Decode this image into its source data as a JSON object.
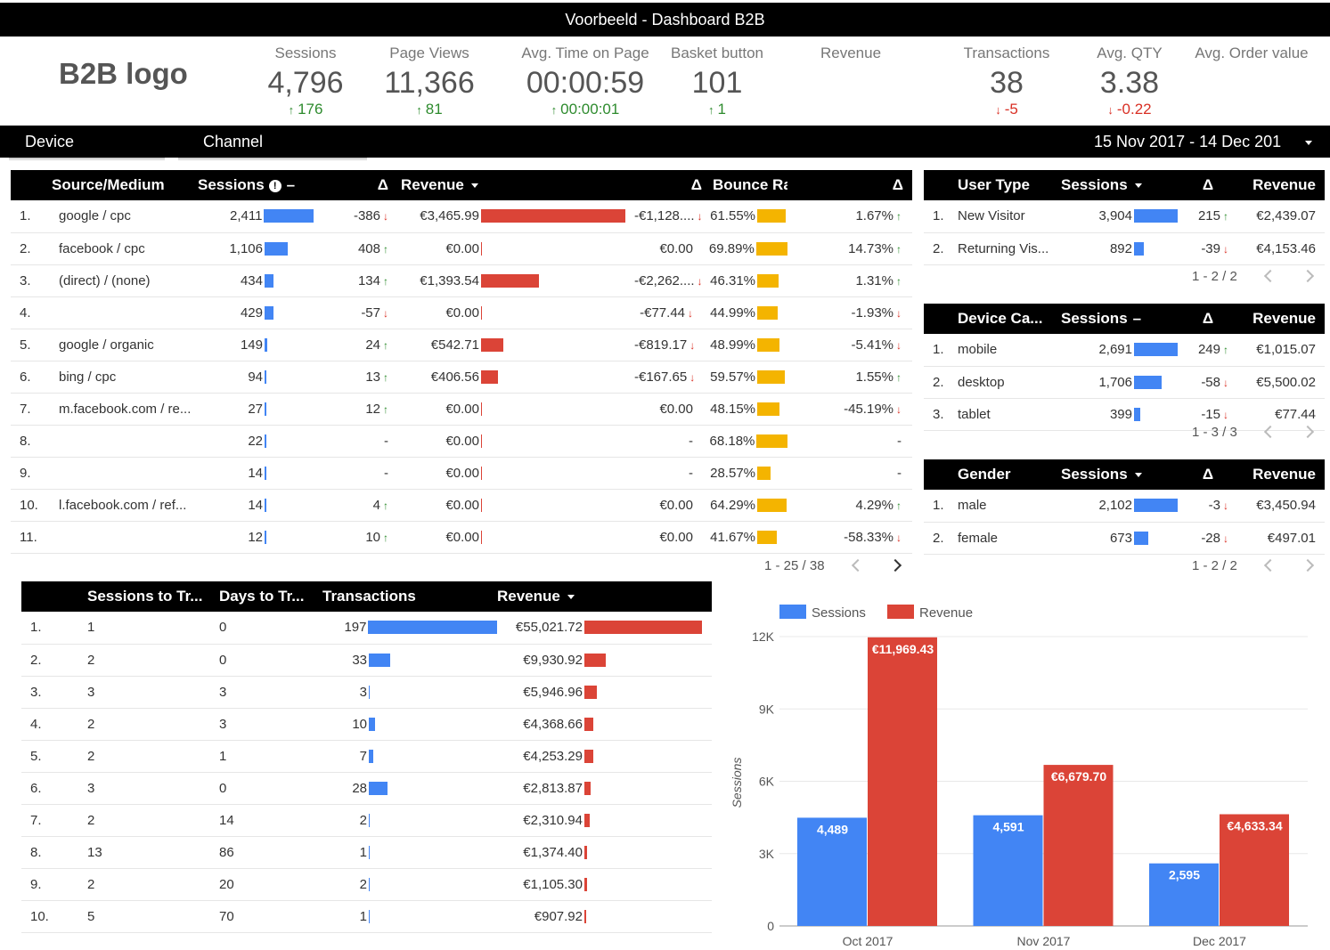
{
  "title": "Voorbeeld - Dashboard B2B",
  "logo": "B2B logo",
  "kpis": [
    {
      "label": "Sessions",
      "value": "4,796",
      "delta": "176",
      "dir": "up"
    },
    {
      "label": "Page Views",
      "value": "11,366",
      "delta": "81",
      "dir": "up"
    },
    {
      "label": "Avg. Time on Page",
      "value": "00:00:59",
      "delta": "00:00:01",
      "dir": "up"
    },
    {
      "label": "Basket button",
      "value": "101",
      "delta": "1",
      "dir": "up"
    },
    {
      "label": "Revenue",
      "value": "",
      "delta": "",
      "dir": ""
    },
    {
      "label": "Transactions",
      "value": "38",
      "delta": "-5",
      "dir": "dn"
    },
    {
      "label": "Avg. QTY",
      "value": "3.38",
      "delta": "-0.22",
      "dir": "dn"
    },
    {
      "label": "Avg. Order value",
      "value": "",
      "delta": "",
      "dir": ""
    }
  ],
  "filters": {
    "device": "Device",
    "channel": "Channel",
    "date": "15 Nov 2017 - 14 Dec 201"
  },
  "source_table": {
    "headers": [
      "Source/Medium",
      "Sessions",
      "Δ",
      "Revenue",
      "Δ",
      "Bounce Rate",
      "Δ"
    ],
    "rows": [
      {
        "n": "1.",
        "src": "google / cpc",
        "sess": "2,411",
        "sd": "-386",
        "sdd": "dn",
        "rev": "€3,465.99",
        "rd": "-€1,128....",
        "rdd": "dn",
        "br": "61.55%",
        "bd": "1.67%",
        "bdd": "up",
        "sw": 2411,
        "rw": 3465.99,
        "bw": 61.55
      },
      {
        "n": "2.",
        "src": "facebook / cpc",
        "sess": "1,106",
        "sd": "408",
        "sdd": "up",
        "rev": "€0.00",
        "rd": "€0.00",
        "rdd": "",
        "br": "69.89%",
        "bd": "14.73%",
        "bdd": "up",
        "sw": 1106,
        "rw": 0,
        "bw": 69.89
      },
      {
        "n": "3.",
        "src": "(direct) / (none)",
        "sess": "434",
        "sd": "134",
        "sdd": "up",
        "rev": "€1,393.54",
        "rd": "-€2,262....",
        "rdd": "dn",
        "br": "46.31%",
        "bd": "1.31%",
        "bdd": "up",
        "sw": 434,
        "rw": 1393.54,
        "bw": 46.31
      },
      {
        "n": "4.",
        "src": "",
        "sess": "429",
        "sd": "-57",
        "sdd": "dn",
        "rev": "€0.00",
        "rd": "-€77.44",
        "rdd": "dn",
        "br": "44.99%",
        "bd": "-1.93%",
        "bdd": "dn",
        "sw": 429,
        "rw": 0,
        "bw": 44.99
      },
      {
        "n": "5.",
        "src": "google / organic",
        "sess": "149",
        "sd": "24",
        "sdd": "up",
        "rev": "€542.71",
        "rd": "-€819.17",
        "rdd": "dn",
        "br": "48.99%",
        "bd": "-5.41%",
        "bdd": "dn",
        "sw": 149,
        "rw": 542.71,
        "bw": 48.99
      },
      {
        "n": "6.",
        "src": "bing / cpc",
        "sess": "94",
        "sd": "13",
        "sdd": "up",
        "rev": "€406.56",
        "rd": "-€167.65",
        "rdd": "dn",
        "br": "59.57%",
        "bd": "1.55%",
        "bdd": "up",
        "sw": 94,
        "rw": 406.56,
        "bw": 59.57
      },
      {
        "n": "7.",
        "src": "m.facebook.com / re...",
        "sess": "27",
        "sd": "12",
        "sdd": "up",
        "rev": "€0.00",
        "rd": "€0.00",
        "rdd": "",
        "br": "48.15%",
        "bd": "-45.19%",
        "bdd": "dn",
        "sw": 27,
        "rw": 0,
        "bw": 48.15
      },
      {
        "n": "8.",
        "src": "",
        "sess": "22",
        "sd": "-",
        "sdd": "",
        "rev": "€0.00",
        "rd": "-",
        "rdd": "",
        "br": "68.18%",
        "bd": "-",
        "bdd": "",
        "sw": 22,
        "rw": 0,
        "bw": 68.18
      },
      {
        "n": "9.",
        "src": "",
        "sess": "14",
        "sd": "-",
        "sdd": "",
        "rev": "€0.00",
        "rd": "-",
        "rdd": "",
        "br": "28.57%",
        "bd": "-",
        "bdd": "",
        "sw": 14,
        "rw": 0,
        "bw": 28.57
      },
      {
        "n": "10.",
        "src": "l.facebook.com / ref...",
        "sess": "14",
        "sd": "4",
        "sdd": "up",
        "rev": "€0.00",
        "rd": "€0.00",
        "rdd": "",
        "br": "64.29%",
        "bd": "4.29%",
        "bdd": "up",
        "sw": 14,
        "rw": 0,
        "bw": 64.29
      },
      {
        "n": "11.",
        "src": "",
        "sess": "12",
        "sd": "10",
        "sdd": "up",
        "rev": "€0.00",
        "rd": "€0.00",
        "rdd": "",
        "br": "41.67%",
        "bd": "-58.33%",
        "bdd": "dn",
        "sw": 12,
        "rw": 0,
        "bw": 41.67
      }
    ],
    "pager": "1 - 25 / 38"
  },
  "user_type": {
    "headers": [
      "User Type",
      "Sessions",
      "Δ",
      "Revenue"
    ],
    "rows": [
      {
        "n": "1.",
        "k": "New Visitor",
        "s": "3,904",
        "sw": 3904,
        "d": "215",
        "dd": "up",
        "r": "€2,439.07"
      },
      {
        "n": "2.",
        "k": "Returning Vis...",
        "s": "892",
        "sw": 892,
        "d": "-39",
        "dd": "dn",
        "r": "€4,153.46"
      }
    ],
    "pager": "1 - 2 / 2"
  },
  "device": {
    "headers": [
      "Device Ca...",
      "Sessions",
      "Δ",
      "Revenue"
    ],
    "rows": [
      {
        "n": "1.",
        "k": "mobile",
        "s": "2,691",
        "sw": 2691,
        "d": "249",
        "dd": "up",
        "r": "€1,015.07"
      },
      {
        "n": "2.",
        "k": "desktop",
        "s": "1,706",
        "sw": 1706,
        "d": "-58",
        "dd": "dn",
        "r": "€5,500.02"
      },
      {
        "n": "3.",
        "k": "tablet",
        "s": "399",
        "sw": 399,
        "d": "-15",
        "dd": "dn",
        "r": "€77.44"
      }
    ],
    "pager": "1 - 3 / 3"
  },
  "gender": {
    "headers": [
      "Gender",
      "Sessions",
      "Δ",
      "Revenue"
    ],
    "rows": [
      {
        "n": "1.",
        "k": "male",
        "s": "2,102",
        "sw": 2102,
        "d": "-3",
        "dd": "dn",
        "r": "€3,450.94"
      },
      {
        "n": "2.",
        "k": "female",
        "s": "673",
        "sw": 673,
        "d": "-28",
        "dd": "dn",
        "r": "€497.01"
      }
    ],
    "pager": "1 - 2 / 2"
  },
  "transactions": {
    "headers": [
      "Sessions to Tr...",
      "Days to Tr...",
      "Transactions",
      "Revenue"
    ],
    "rows": [
      {
        "n": "1.",
        "s": "1",
        "d": "0",
        "t": "197",
        "tw": 197,
        "r": "€55,021.72",
        "rw": 55021.72
      },
      {
        "n": "2.",
        "s": "2",
        "d": "0",
        "t": "33",
        "tw": 33,
        "r": "€9,930.92",
        "rw": 9930.92
      },
      {
        "n": "3.",
        "s": "3",
        "d": "3",
        "t": "3",
        "tw": 3,
        "r": "€5,946.96",
        "rw": 5946.96
      },
      {
        "n": "4.",
        "s": "2",
        "d": "3",
        "t": "10",
        "tw": 10,
        "r": "€4,368.66",
        "rw": 4368.66
      },
      {
        "n": "5.",
        "s": "2",
        "d": "1",
        "t": "7",
        "tw": 7,
        "r": "€4,253.29",
        "rw": 4253.29
      },
      {
        "n": "6.",
        "s": "3",
        "d": "0",
        "t": "28",
        "tw": 28,
        "r": "€2,813.87",
        "rw": 2813.87
      },
      {
        "n": "7.",
        "s": "2",
        "d": "14",
        "t": "2",
        "tw": 2,
        "r": "€2,310.94",
        "rw": 2310.94
      },
      {
        "n": "8.",
        "s": "13",
        "d": "86",
        "t": "1",
        "tw": 1,
        "r": "€1,374.40",
        "rw": 1374.4
      },
      {
        "n": "9.",
        "s": "2",
        "d": "20",
        "t": "2",
        "tw": 2,
        "r": "€1,105.30",
        "rw": 1105.3
      },
      {
        "n": "10.",
        "s": "5",
        "d": "70",
        "t": "1",
        "tw": 1,
        "r": "€907.92",
        "rw": 907.92
      }
    ]
  },
  "chart_data": {
    "type": "bar",
    "categories": [
      "Oct 2017",
      "Nov 2017",
      "Dec 2017"
    ],
    "series": [
      {
        "name": "Sessions",
        "values": [
          4489,
          4591,
          2595
        ],
        "labels": [
          "4,489",
          "4,591",
          "2,595"
        ],
        "color": "#4285f4"
      },
      {
        "name": "Revenue",
        "values": [
          11969.43,
          6679.7,
          4633.34
        ],
        "labels": [
          "€11,969.43",
          "€6,679.70",
          "€4,633.34"
        ],
        "color": "#db4437"
      }
    ],
    "ylabel": "Sessions",
    "ylim": [
      0,
      12000
    ],
    "yticks": [
      0,
      3000,
      6000,
      9000,
      12000
    ],
    "ytick_labels": [
      "0",
      "3K",
      "6K",
      "9K",
      "12K"
    ],
    "legend": "top-left",
    "grid": true
  }
}
